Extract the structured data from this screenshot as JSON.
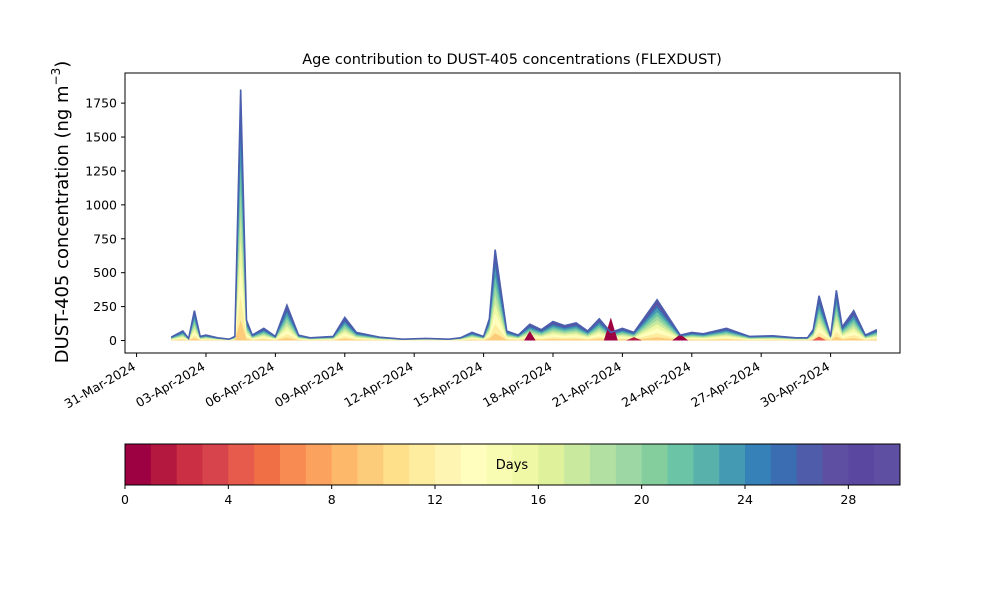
{
  "chart_data": [
    {
      "type": "area",
      "title": "Age contribution to DUST-405 concentrations (FLEXDUST)",
      "xlabel": "",
      "ylabel_main": "DUST-405 concentration (ng m",
      "ylabel_unit_exp": "−3",
      "ylabel_close": ")",
      "x_axis_type": "date",
      "xlim": [
        "2024-03-30T12:00",
        "2024-05-03T00:00"
      ],
      "ylim": [
        -92,
        1972
      ],
      "x_ticks": [
        "2024-03-31",
        "2024-04-03",
        "2024-04-06",
        "2024-04-09",
        "2024-04-12",
        "2024-04-15",
        "2024-04-18",
        "2024-04-21",
        "2024-04-24",
        "2024-04-27",
        "2024-04-30"
      ],
      "x_tick_labels": [
        "31-Mar-2024",
        "03-Apr-2024",
        "06-Apr-2024",
        "09-Apr-2024",
        "12-Apr-2024",
        "15-Apr-2024",
        "18-Apr-2024",
        "21-Apr-2024",
        "24-Apr-2024",
        "27-Apr-2024",
        "30-Apr-2024"
      ],
      "y_ticks": [
        0,
        250,
        500,
        750,
        1000,
        1250,
        1500,
        1750
      ],
      "y_tick_labels": [
        "0",
        "250",
        "500",
        "750",
        "1000",
        "1250",
        "1500",
        "1750"
      ],
      "grid": false,
      "total_concentration_approx": {
        "x": [
          "2024-04-01T12:00",
          "2024-04-02T00:00",
          "2024-04-02T06:00",
          "2024-04-02T12:00",
          "2024-04-02T18:00",
          "2024-04-03T00:00",
          "2024-04-03T12:00",
          "2024-04-04T00:00",
          "2024-04-04T06:00",
          "2024-04-04T12:00",
          "2024-04-04T18:00",
          "2024-04-05T00:00",
          "2024-04-05T12:00",
          "2024-04-06T00:00",
          "2024-04-06T12:00",
          "2024-04-07T00:00",
          "2024-04-07T12:00",
          "2024-04-08T12:00",
          "2024-04-09T00:00",
          "2024-04-09T12:00",
          "2024-04-10T12:00",
          "2024-04-11T12:00",
          "2024-04-12T12:00",
          "2024-04-13T12:00",
          "2024-04-14T00:00",
          "2024-04-14T12:00",
          "2024-04-15T00:00",
          "2024-04-15T06:00",
          "2024-04-15T12:00",
          "2024-04-16T00:00",
          "2024-04-16T12:00",
          "2024-04-17T00:00",
          "2024-04-17T12:00",
          "2024-04-18T00:00",
          "2024-04-18T12:00",
          "2024-04-19T00:00",
          "2024-04-19T12:00",
          "2024-04-20T00:00",
          "2024-04-20T12:00",
          "2024-04-21T00:00",
          "2024-04-21T12:00",
          "2024-04-22T12:00",
          "2024-04-23T12:00",
          "2024-04-24T00:00",
          "2024-04-24T12:00",
          "2024-04-25T12:00",
          "2024-04-26T12:00",
          "2024-04-27T12:00",
          "2024-04-28T12:00",
          "2024-04-29T00:00",
          "2024-04-29T06:00",
          "2024-04-29T12:00",
          "2024-04-30T00:00",
          "2024-04-30T06:00",
          "2024-04-30T12:00",
          "2024-05-01T00:00",
          "2024-05-01T12:00",
          "2024-05-02T00:00"
        ],
        "y": [
          25,
          70,
          15,
          220,
          30,
          40,
          20,
          10,
          30,
          1850,
          150,
          40,
          90,
          30,
          260,
          40,
          20,
          30,
          170,
          60,
          25,
          10,
          15,
          10,
          20,
          60,
          30,
          160,
          670,
          70,
          40,
          120,
          80,
          140,
          110,
          130,
          70,
          160,
          60,
          90,
          60,
          300,
          40,
          60,
          50,
          90,
          30,
          35,
          20,
          20,
          80,
          330,
          30,
          370,
          100,
          220,
          40,
          80
        ]
      },
      "colorbar": {
        "label": "Days",
        "range": [
          0,
          30
        ],
        "steps": 30,
        "colormap": "Spectral",
        "ticks": [
          0,
          4,
          8,
          12,
          16,
          20,
          24,
          28
        ],
        "tick_labels": [
          "0",
          "4",
          "8",
          "12",
          "16",
          "20",
          "24",
          "28"
        ],
        "colors": [
          "#9e0142",
          "#b5183f",
          "#cb2f44",
          "#d8444c",
          "#e65b4c",
          "#f06f45",
          "#f88b52",
          "#fba35e",
          "#fdb869",
          "#fdcc7a",
          "#fee08b",
          "#feed9f",
          "#fff5b2",
          "#fffebe",
          "#f7fcb2",
          "#eef8a5",
          "#dff19b",
          "#c9e99e",
          "#b2e0a2",
          "#9cd7a4",
          "#84ce9e",
          "#6bc4a5",
          "#58b2ab",
          "#459ab3",
          "#3682b8",
          "#3b6db2",
          "#4e5ca9",
          "#5e4fa2",
          "#5a48a0",
          "#5e4fa2"
        ]
      }
    }
  ]
}
